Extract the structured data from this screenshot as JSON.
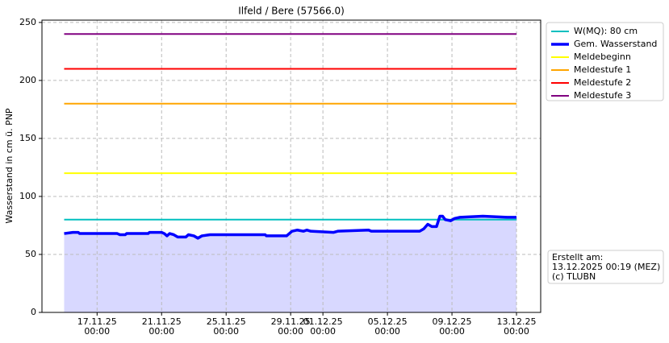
{
  "chart_data": {
    "type": "line",
    "title": "Ilfeld / Bere (57566.0)",
    "y_label": "Wasserstand in cm ü. PNP",
    "xlim": [
      "2025-11-13T14:00",
      "2025-12-14T12:00"
    ],
    "xticks": [
      {
        "value": "2025-11-17T00:00",
        "label": "17.11.25\n00:00"
      },
      {
        "value": "2025-11-21T00:00",
        "label": "21.11.25\n00:00"
      },
      {
        "value": "2025-11-25T00:00",
        "label": "25.11.25\n00:00"
      },
      {
        "value": "2025-11-29T00:00",
        "label": "29.11.25\n00:00"
      },
      {
        "value": "2025-12-01T00:00",
        "label": "01.12.25\n00:00"
      },
      {
        "value": "2025-12-05T00:00",
        "label": "05.12.25\n00:00"
      },
      {
        "value": "2025-12-09T00:00",
        "label": "09.12.25\n00:00"
      },
      {
        "value": "2025-12-13T00:00",
        "label": "13.12.25\n00:00"
      }
    ],
    "ylim": [
      0,
      252
    ],
    "yticks": [
      0,
      50,
      100,
      150,
      200,
      250
    ],
    "grid": true,
    "series": [
      {
        "name": "W(MQ): 80 cm",
        "color": "#00bfbf",
        "width": 2,
        "x": [
          "2025-11-14T23:00",
          "2025-12-13T00:00"
        ],
        "values": [
          80,
          80
        ]
      },
      {
        "name": "Gem. Wasserstand",
        "color": "#0000ff",
        "width": 3.5,
        "fill": "#d8d8ff",
        "x": [
          "2025-11-14T23:00",
          "2025-11-15T12:00",
          "2025-11-15T20:00",
          "2025-11-15T22:00",
          "2025-11-18T06:00",
          "2025-11-18T10:00",
          "2025-11-18T18:00",
          "2025-11-18T20:00",
          "2025-11-20T04:00",
          "2025-11-20T06:00",
          "2025-11-21T00:00",
          "2025-11-21T04:00",
          "2025-11-21T08:00",
          "2025-11-21T12:00",
          "2025-11-21T18:00",
          "2025-11-22T00:00",
          "2025-11-22T12:00",
          "2025-11-22T16:00",
          "2025-11-23T00:00",
          "2025-11-23T06:00",
          "2025-11-23T12:00",
          "2025-11-24T00:00",
          "2025-11-27T10:00",
          "2025-11-27T12:00",
          "2025-11-28T18:00",
          "2025-11-29T02:00",
          "2025-11-29T10:00",
          "2025-11-29T19:00",
          "2025-11-30T00:00",
          "2025-11-30T06:00",
          "2025-12-01T16:00",
          "2025-12-01T22:00",
          "2025-12-03T20:00",
          "2025-12-04T00:00",
          "2025-12-07T00:00",
          "2025-12-07T06:00",
          "2025-12-07T12:00",
          "2025-12-07T18:00",
          "2025-12-08T01:00",
          "2025-12-08T06:00",
          "2025-12-08T10:00",
          "2025-12-08T14:00",
          "2025-12-08T22:00",
          "2025-12-09T04:00",
          "2025-12-09T12:00",
          "2025-12-10T22:00",
          "2025-12-12T10:00",
          "2025-12-13T00:00"
        ],
        "values": [
          68,
          69,
          69,
          68,
          68,
          67,
          67,
          68,
          68,
          69,
          69,
          68,
          66,
          68,
          67,
          65,
          65,
          67,
          66,
          64,
          66,
          67,
          67,
          66,
          66,
          70,
          71,
          70,
          71,
          70,
          69,
          70,
          71,
          70,
          70,
          72,
          76,
          74,
          74,
          83,
          83,
          80,
          79,
          81,
          82,
          83,
          82,
          82
        ]
      },
      {
        "name": "Meldebeginn",
        "color": "#ffff00",
        "width": 2,
        "x": [
          "2025-11-14T23:00",
          "2025-12-13T00:00"
        ],
        "values": [
          120,
          120
        ]
      },
      {
        "name": "Meldestufe 1",
        "color": "#ffa500",
        "width": 2,
        "x": [
          "2025-11-14T23:00",
          "2025-12-13T00:00"
        ],
        "values": [
          180,
          180
        ]
      },
      {
        "name": "Meldestufe 2",
        "color": "#ff0000",
        "width": 2,
        "x": [
          "2025-11-14T23:00",
          "2025-12-13T00:00"
        ],
        "values": [
          210,
          210
        ]
      },
      {
        "name": "Meldestufe 3",
        "color": "#800080",
        "width": 2,
        "x": [
          "2025-11-14T23:00",
          "2025-12-13T00:00"
        ],
        "values": [
          240,
          240
        ]
      }
    ],
    "annotation": [
      "Erstellt am:",
      "13.12.2025 00:19 (MEZ)",
      "(c) TLUBN"
    ]
  }
}
